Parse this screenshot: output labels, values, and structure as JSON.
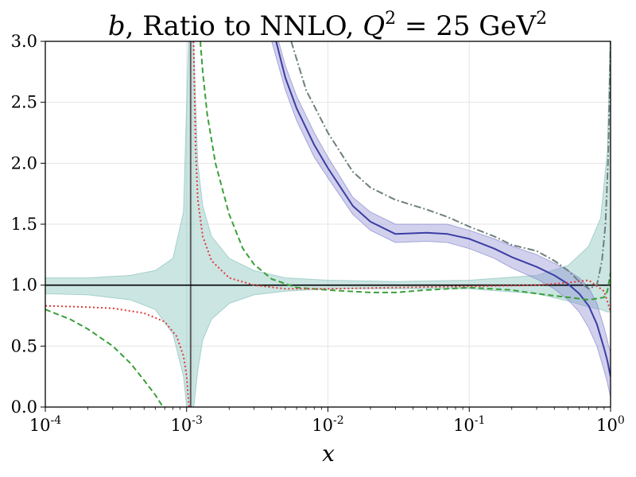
{
  "chart_data": {
    "type": "line",
    "title": {
      "prefix": "b",
      "main": ", Ratio to NNLO, ",
      "q": "Q",
      "q_sup": "2",
      "eq": " = 25 GeV",
      "unit_sup": "2"
    },
    "xlabel": "x",
    "ylabel": "",
    "xscale": "log",
    "xlim": [
      0.0001,
      1
    ],
    "ylim": [
      0,
      3
    ],
    "grid": true,
    "x_ticks": [
      {
        "value": 0.0001,
        "base": "10",
        "exp": "-4"
      },
      {
        "value": 0.001,
        "base": "10",
        "exp": "-3"
      },
      {
        "value": 0.01,
        "base": "10",
        "exp": "-2"
      },
      {
        "value": 0.1,
        "base": "10",
        "exp": "-1"
      },
      {
        "value": 1,
        "base": "10",
        "exp": "0"
      }
    ],
    "y_ticks": [
      {
        "value": 0.0,
        "label": "0.0"
      },
      {
        "value": 0.5,
        "label": "0.5"
      },
      {
        "value": 1.0,
        "label": "1.0"
      },
      {
        "value": 1.5,
        "label": "1.5"
      },
      {
        "value": 2.0,
        "label": "2.0"
      },
      {
        "value": 2.5,
        "label": "2.5"
      },
      {
        "value": 3.0,
        "label": "3.0"
      }
    ],
    "reference_line": {
      "y": 1.0,
      "color": "#000000"
    },
    "vertical_line": {
      "x": 0.00107,
      "color": "#000000"
    },
    "bands": [
      {
        "name": "nnlo-band",
        "fill": "#7ebdb7",
        "stroke": "#7ebdb7",
        "segments": [
          {
            "x": [
              0.0001,
              0.0002,
              0.0004,
              0.0006,
              0.0008,
              0.00095,
              0.001,
              0.00105
            ],
            "upper": [
              1.06,
              1.06,
              1.08,
              1.12,
              1.22,
              1.6,
              2.5,
              3.3
            ],
            "lower": [
              0.93,
              0.92,
              0.88,
              0.8,
              0.6,
              0.25,
              0.0,
              -0.1
            ]
          },
          {
            "x": [
              0.0011,
              0.00115,
              0.0012,
              0.0013,
              0.0015,
              0.002,
              0.003,
              0.005,
              0.01,
              0.03,
              0.1,
              0.3,
              0.5,
              0.7,
              0.85,
              0.95,
              1.0
            ],
            "upper": [
              3.3,
              2.6,
              2.0,
              1.65,
              1.4,
              1.22,
              1.12,
              1.06,
              1.04,
              1.03,
              1.04,
              1.08,
              1.16,
              1.32,
              1.55,
              2.1,
              3.2
            ],
            "lower": [
              -0.1,
              0.1,
              0.3,
              0.55,
              0.72,
              0.85,
              0.92,
              0.95,
              0.97,
              0.97,
              0.97,
              0.93,
              0.87,
              0.82,
              0.8,
              0.78,
              0.78
            ]
          }
        ]
      },
      {
        "name": "blue-band",
        "fill": "#8c8cd2",
        "stroke": "#7a7ac8",
        "segments": [
          {
            "x": [
              0.004,
              0.005,
              0.006,
              0.008,
              0.01,
              0.015,
              0.02,
              0.03,
              0.05,
              0.07,
              0.1,
              0.15,
              0.2,
              0.3,
              0.4,
              0.5,
              0.6,
              0.7,
              0.8,
              0.9,
              0.95,
              0.97,
              1.0
            ],
            "upper": [
              3.2,
              2.8,
              2.55,
              2.25,
              2.05,
              1.72,
              1.6,
              1.5,
              1.5,
              1.5,
              1.45,
              1.38,
              1.32,
              1.25,
              1.18,
              1.12,
              1.06,
              0.98,
              0.85,
              0.65,
              0.55,
              0.5,
              0.45
            ],
            "lower": [
              3.0,
              2.6,
              2.35,
              2.05,
              1.88,
              1.58,
              1.45,
              1.35,
              1.36,
              1.35,
              1.3,
              1.22,
              1.14,
              1.05,
              0.97,
              0.88,
              0.78,
              0.65,
              0.5,
              0.3,
              0.2,
              0.15,
              0.08
            ]
          }
        ]
      }
    ],
    "series": [
      {
        "name": "blue-line",
        "color": "#3d3da4",
        "style": "solid",
        "width": 2,
        "segments": [
          {
            "x": [
              0.0043,
              0.005,
              0.006,
              0.008,
              0.01,
              0.015,
              0.02,
              0.03,
              0.05,
              0.07,
              0.1,
              0.15,
              0.2,
              0.3,
              0.4,
              0.5,
              0.6,
              0.7,
              0.8,
              0.9,
              0.95,
              0.98,
              1.0
            ],
            "y": [
              3.0,
              2.7,
              2.45,
              2.15,
              1.96,
              1.65,
              1.52,
              1.42,
              1.43,
              1.42,
              1.38,
              1.3,
              1.23,
              1.15,
              1.08,
              1.01,
              0.93,
              0.83,
              0.68,
              0.48,
              0.38,
              0.3,
              0.25
            ]
          }
        ]
      },
      {
        "name": "gray-dashdot-line",
        "color": "#6f7f7f",
        "style": "dashdot",
        "width": 2,
        "segments": [
          {
            "x": [
              0.0055,
              0.007,
              0.01,
              0.015,
              0.02,
              0.03,
              0.05,
              0.07,
              0.1,
              0.15,
              0.2,
              0.3,
              0.4,
              0.5,
              0.6,
              0.7,
              0.8,
              0.87,
              0.92,
              0.96,
              0.985,
              1.0
            ],
            "y": [
              3.0,
              2.6,
              2.25,
              1.93,
              1.8,
              1.7,
              1.62,
              1.56,
              1.48,
              1.4,
              1.33,
              1.28,
              1.2,
              1.12,
              1.03,
              0.97,
              1.0,
              1.2,
              1.5,
              2.0,
              2.6,
              3.0
            ]
          }
        ]
      },
      {
        "name": "green-dashed-line",
        "color": "#3aa03a",
        "style": "dashed",
        "width": 2,
        "segments": [
          {
            "x": [
              0.0001,
              0.00015,
              0.0002,
              0.0003,
              0.0004,
              0.0005,
              0.0006,
              0.00068
            ],
            "y": [
              0.8,
              0.72,
              0.64,
              0.5,
              0.36,
              0.22,
              0.1,
              0.0
            ]
          },
          {
            "x": [
              0.00125,
              0.0013,
              0.0014,
              0.0016,
              0.002,
              0.0025,
              0.003,
              0.004,
              0.006,
              0.01,
              0.02,
              0.03,
              0.05,
              0.1,
              0.2,
              0.3,
              0.5,
              0.7,
              0.8,
              0.9,
              0.95,
              1.0
            ],
            "y": [
              3.0,
              2.75,
              2.4,
              2.0,
              1.58,
              1.3,
              1.17,
              1.05,
              0.98,
              0.96,
              0.94,
              0.94,
              0.96,
              0.98,
              0.96,
              0.93,
              0.9,
              0.88,
              0.89,
              0.9,
              0.95,
              1.1
            ]
          }
        ]
      },
      {
        "name": "red-dotted-line",
        "color": "#e03a3a",
        "style": "dotted",
        "width": 2,
        "segments": [
          {
            "x": [
              0.0001,
              0.0002,
              0.0003,
              0.0005,
              0.0007,
              0.00085,
              0.00095,
              0.001,
              0.00104
            ],
            "y": [
              0.83,
              0.82,
              0.81,
              0.77,
              0.7,
              0.58,
              0.42,
              0.25,
              0.0
            ]
          },
          {
            "x": [
              0.00112,
              0.00116,
              0.0012,
              0.0013,
              0.0015,
              0.002,
              0.003,
              0.005,
              0.01,
              0.03,
              0.1,
              0.3,
              0.5,
              0.7,
              0.9,
              0.96,
              1.0
            ],
            "y": [
              3.0,
              2.1,
              1.7,
              1.4,
              1.2,
              1.06,
              1.0,
              0.97,
              0.97,
              0.98,
              0.99,
              1.0,
              1.02,
              1.04,
              0.95,
              0.85,
              0.78
            ]
          }
        ]
      }
    ]
  }
}
